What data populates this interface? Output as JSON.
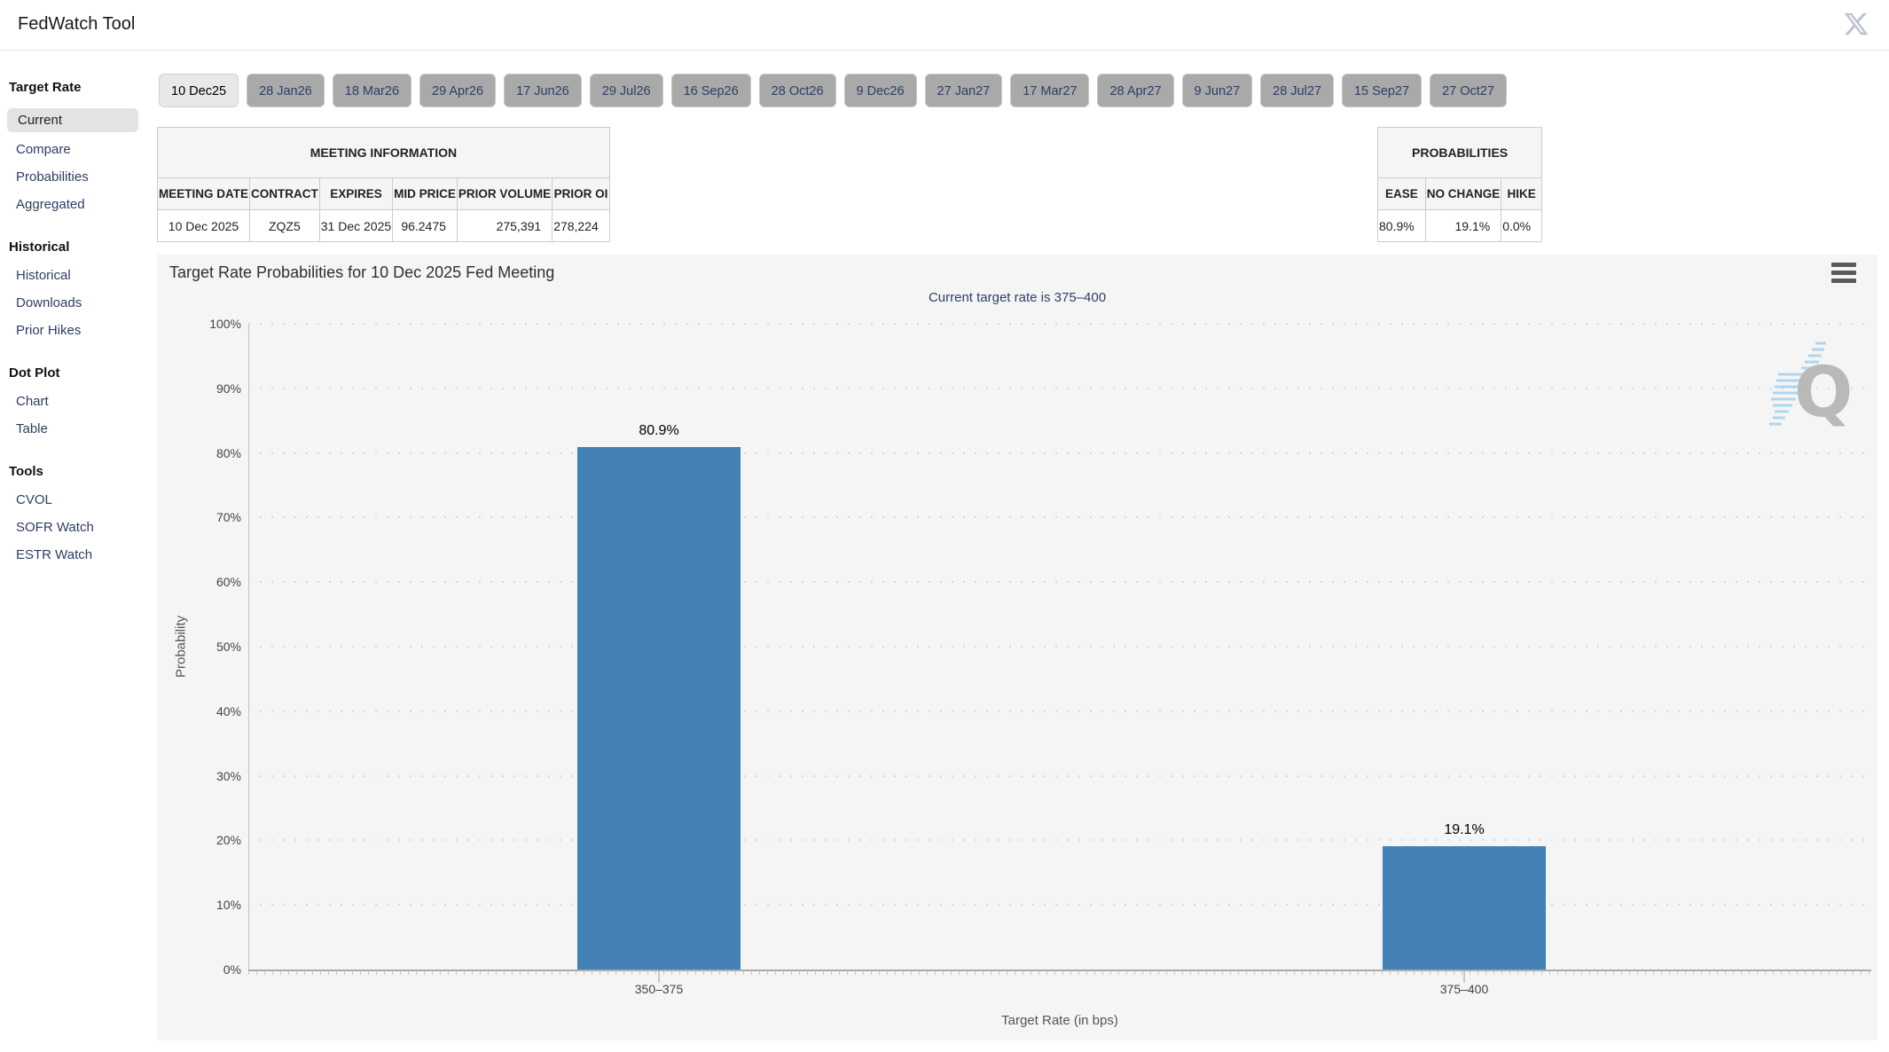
{
  "header": {
    "title": "FedWatch Tool",
    "icons": {
      "social": "x-logo"
    }
  },
  "sidebar": {
    "sections": [
      {
        "heading": "Target Rate",
        "items": [
          {
            "label": "Current",
            "selected": true
          },
          {
            "label": "Compare",
            "selected": false
          },
          {
            "label": "Probabilities",
            "selected": false
          },
          {
            "label": "Aggregated",
            "selected": false
          }
        ]
      },
      {
        "heading": "Historical",
        "items": [
          {
            "label": "Historical",
            "selected": false
          },
          {
            "label": "Downloads",
            "selected": false
          },
          {
            "label": "Prior Hikes",
            "selected": false
          }
        ]
      },
      {
        "heading": "Dot Plot",
        "items": [
          {
            "label": "Chart",
            "selected": false
          },
          {
            "label": "Table",
            "selected": false
          }
        ]
      },
      {
        "heading": "Tools",
        "items": [
          {
            "label": "CVOL",
            "selected": false
          },
          {
            "label": "SOFR Watch",
            "selected": false
          },
          {
            "label": "ESTR Watch",
            "selected": false
          }
        ]
      }
    ]
  },
  "meeting_tabs": {
    "selected": "10 Dec25",
    "dates": [
      "10 Dec25",
      "28 Jan26",
      "18 Mar26",
      "29 Apr26",
      "17 Jun26",
      "29 Jul26",
      "16 Sep26",
      "28 Oct26",
      "9 Dec26",
      "27 Jan27",
      "17 Mar27",
      "28 Apr27",
      "9 Jun27",
      "28 Jul27",
      "15 Sep27",
      "27 Oct27"
    ]
  },
  "meeting_info": {
    "title": "MEETING INFORMATION",
    "columns": [
      "MEETING DATE",
      "CONTRACT",
      "EXPIRES",
      "MID PRICE",
      "PRIOR VOLUME",
      "PRIOR OI"
    ],
    "values": [
      "10 Dec 2025",
      "ZQZ5",
      "31 Dec 2025",
      "96.2475",
      "275,391",
      "278,224"
    ]
  },
  "probabilities_table": {
    "title": "PROBABILITIES",
    "columns": [
      "EASE",
      "NO CHANGE",
      "HIKE"
    ],
    "values": [
      "80.9%",
      "19.1%",
      "0.0%"
    ]
  },
  "chart_data": {
    "type": "bar",
    "title": "Target Rate Probabilities for 10 Dec 2025 Fed Meeting",
    "subtitle": "Current target rate is 375–400",
    "categories": [
      "350–375",
      "375–400"
    ],
    "values": [
      80.9,
      19.1
    ],
    "value_labels": [
      "80.9%",
      "19.1%"
    ],
    "xlabel": "Target Rate (in bps)",
    "ylabel": "Probability",
    "ylim": [
      0,
      100
    ],
    "yticks": [
      "0%",
      "10%",
      "20%",
      "30%",
      "40%",
      "50%",
      "60%",
      "70%",
      "80%",
      "90%",
      "100%"
    ],
    "grid": "dotted-horizontal",
    "legend": "none",
    "bar_color": "#4481b5",
    "subtitle_color": "#2e3f66",
    "watermark_letter": "Q",
    "icons": {
      "menu": "hamburger"
    }
  }
}
